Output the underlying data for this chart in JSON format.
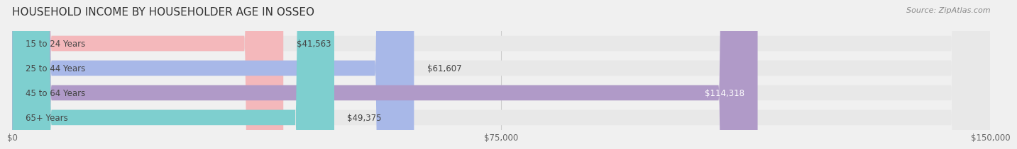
{
  "title": "HOUSEHOLD INCOME BY HOUSEHOLDER AGE IN OSSEO",
  "source": "Source: ZipAtlas.com",
  "categories": [
    "15 to 24 Years",
    "25 to 44 Years",
    "45 to 64 Years",
    "65+ Years"
  ],
  "values": [
    41563,
    61607,
    114318,
    49375
  ],
  "bar_colors": [
    "#f4b8bb",
    "#a8b8e8",
    "#b09ac8",
    "#7ecfcf"
  ],
  "bar_labels": [
    "$41,563",
    "$61,607",
    "$114,318",
    "$49,375"
  ],
  "label_inside": [
    false,
    false,
    true,
    false
  ],
  "xmax": 150000,
  "xticks": [
    0,
    75000,
    150000
  ],
  "xticklabels": [
    "$0",
    "$75,000",
    "$150,000"
  ],
  "bg_color": "#f0f0f0",
  "bar_bg_color": "#e8e8e8",
  "title_fontsize": 11,
  "source_fontsize": 8,
  "label_fontsize": 8.5,
  "tick_fontsize": 8.5,
  "cat_fontsize": 8.5
}
